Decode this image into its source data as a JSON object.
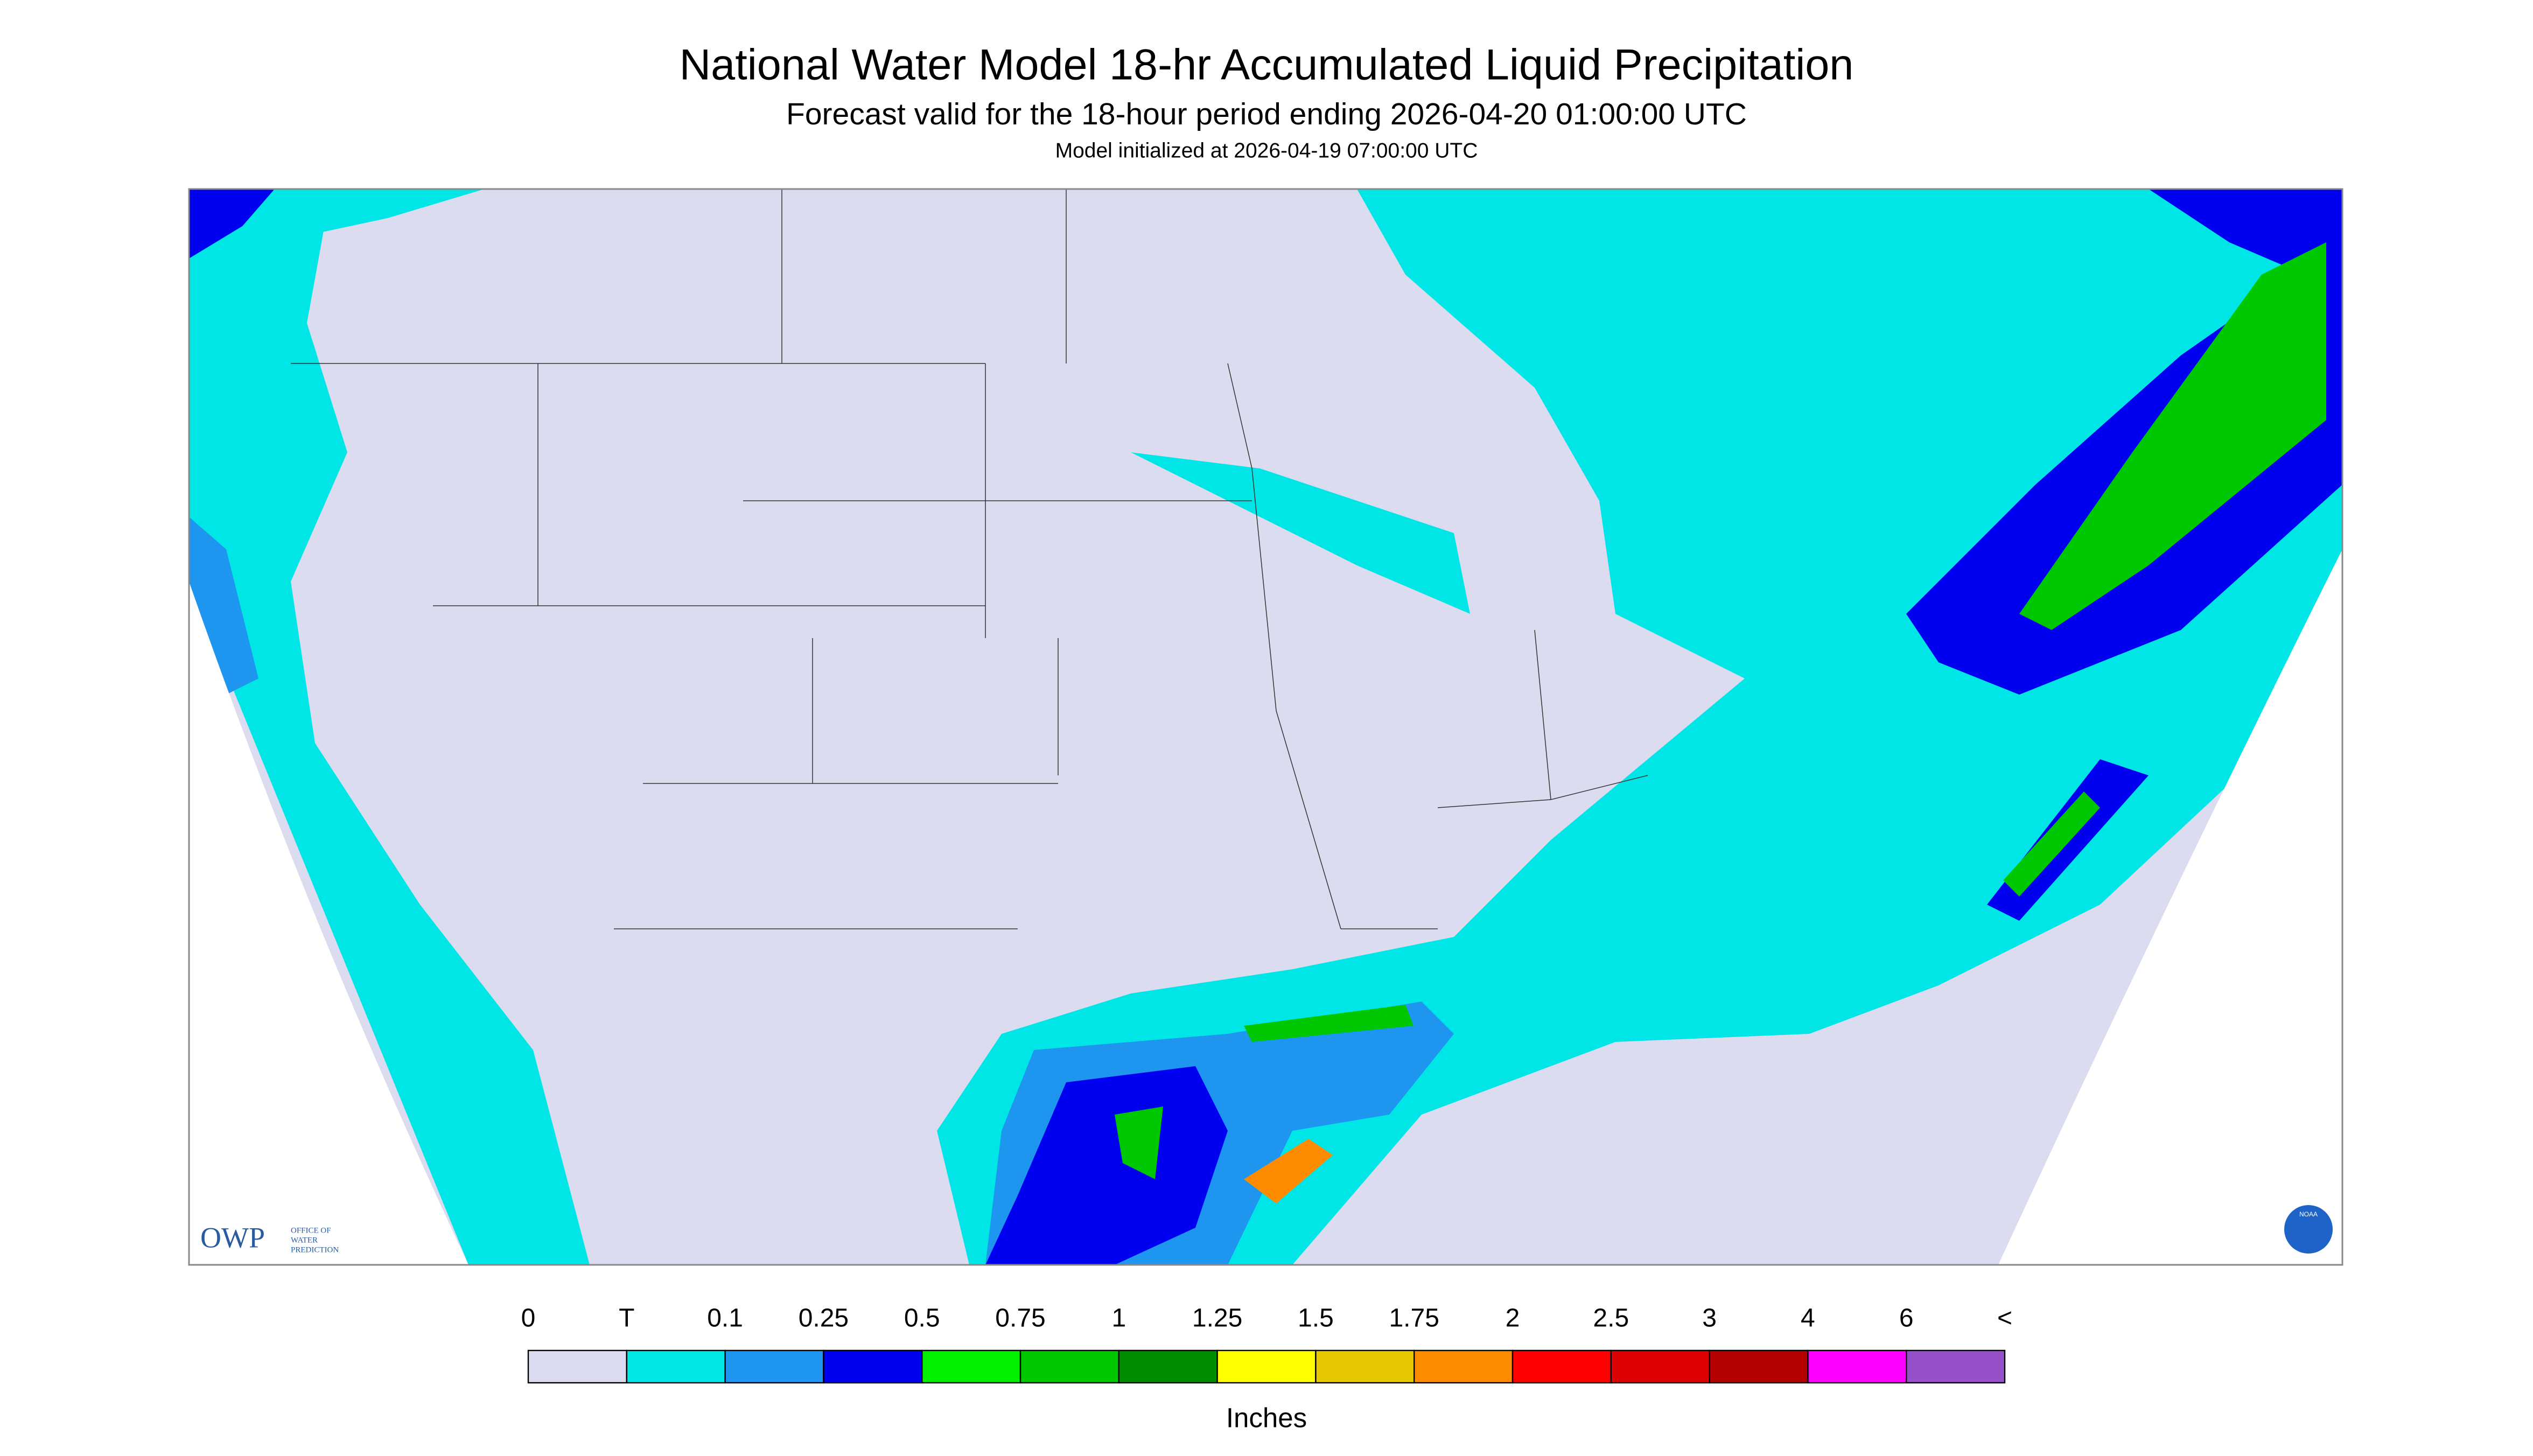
{
  "header": {
    "title": "National Water Model 18-hr Accumulated Liquid Precipitation",
    "subtitle": "Forecast valid for the 18-hour period ending 2026-04-20 01:00:00 UTC",
    "note": "Model initialized at 2026-04-19 07:00:00 UTC"
  },
  "legend": {
    "labels": [
      "0",
      "T",
      "0.1",
      "0.25",
      "0.5",
      "0.75",
      "1",
      "1.25",
      "1.5",
      "1.75",
      "2",
      "2.5",
      "3",
      "4",
      "6",
      "<"
    ],
    "colors": [
      "#dcdcf0",
      "#00e6e6",
      "#1e96f0",
      "#0000f0",
      "#00f000",
      "#00c800",
      "#008c00",
      "#ffff00",
      "#e6c800",
      "#ff8c00",
      "#ff0000",
      "#dc0000",
      "#b40000",
      "#ff00ff",
      "#9650c8"
    ],
    "unit": "Inches"
  },
  "logo": {
    "initials": "OWP",
    "lines": [
      "OFFICE OF",
      "WATER",
      "PREDICTION"
    ]
  },
  "noaa_logo": "NOAA"
}
